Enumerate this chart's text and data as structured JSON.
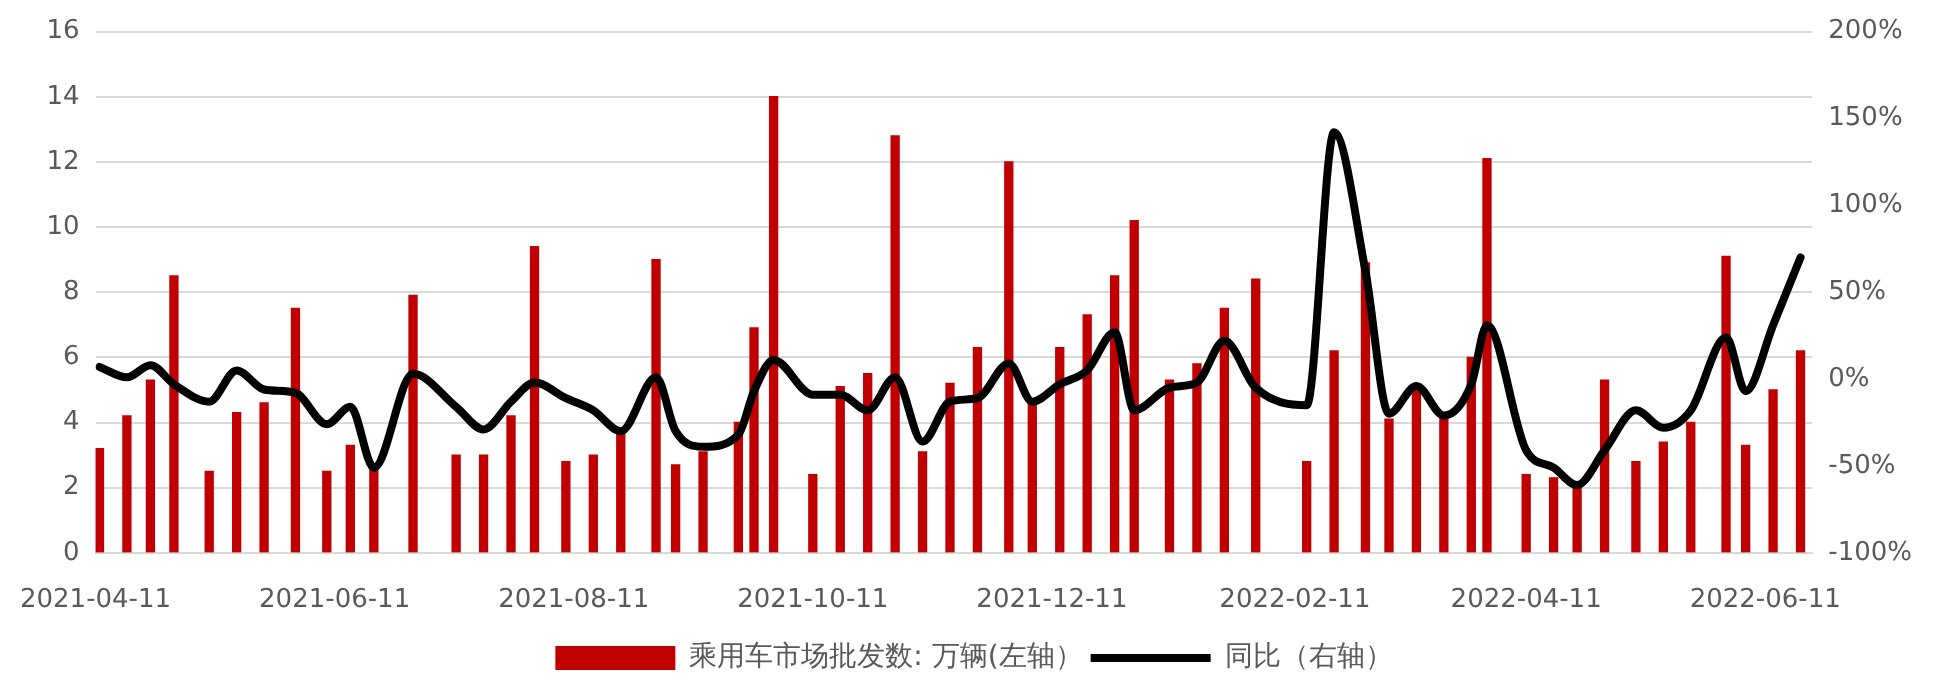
{
  "chart_data": {
    "type": "bar",
    "x": [
      "2021-04-12",
      "2021-04-19",
      "2021-04-25",
      "2021-05-01",
      "2021-05-10",
      "2021-05-17",
      "2021-05-24",
      "2021-06-01",
      "2021-06-09",
      "2021-06-15",
      "2021-06-21",
      "2021-07-01",
      "2021-07-12",
      "2021-07-19",
      "2021-07-26",
      "2021-08-01",
      "2021-08-09",
      "2021-08-16",
      "2021-08-23",
      "2021-09-01",
      "2021-09-06",
      "2021-09-13",
      "2021-09-22",
      "2021-09-26",
      "2021-10-01",
      "2021-10-11",
      "2021-10-18",
      "2021-10-25",
      "2021-11-01",
      "2021-11-08",
      "2021-11-15",
      "2021-11-22",
      "2021-11-30",
      "2021-12-06",
      "2021-12-13",
      "2021-12-20",
      "2021-12-27",
      "2022-01-01",
      "2022-01-10",
      "2022-01-17",
      "2022-01-24",
      "2022-02-01",
      "2022-02-14",
      "2022-02-21",
      "2022-03-01",
      "2022-03-07",
      "2022-03-14",
      "2022-03-21",
      "2022-03-28",
      "2022-04-01",
      "2022-04-11",
      "2022-04-18",
      "2022-04-24",
      "2022-05-01",
      "2022-05-09",
      "2022-05-16",
      "2022-05-23",
      "2022-06-01",
      "2022-06-06",
      "2022-06-13",
      "2022-06-20"
    ],
    "series": [
      {
        "name": "乘用车市场批发数: 万辆(左轴）",
        "color": "#c00000",
        "values": [
          3.2,
          4.2,
          5.3,
          8.5,
          2.5,
          4.3,
          4.6,
          7.5,
          2.5,
          3.3,
          2.6,
          7.9,
          3.0,
          3.0,
          4.2,
          9.4,
          2.8,
          3.0,
          3.7,
          9.0,
          2.7,
          3.1,
          4.0,
          6.9,
          14.0,
          2.4,
          5.1,
          5.5,
          12.8,
          3.1,
          5.2,
          6.3,
          12.0,
          4.7,
          6.3,
          7.3,
          8.5,
          10.2,
          5.3,
          5.8,
          7.5,
          8.4,
          2.8,
          6.2,
          8.9,
          4.1,
          5.0,
          4.2,
          6.0,
          12.1,
          2.4,
          2.3,
          2.0,
          5.3,
          2.8,
          3.4,
          4.0,
          9.1,
          3.3,
          5.0,
          6.2
        ]
      },
      {
        "name": "同比（右轴）",
        "type": "line",
        "axis": "y2",
        "color": "#000000",
        "values": [
          7,
          1,
          8,
          -3,
          -13,
          5,
          -6,
          -8,
          -26,
          -16,
          -51,
          3,
          -16,
          -29,
          -13,
          -2,
          -11,
          -18,
          -30,
          1,
          -30,
          -39,
          -32,
          -7,
          11,
          -9,
          -9,
          -18,
          1,
          -36,
          -13,
          -11,
          9,
          -13,
          -3,
          5,
          27,
          -18,
          -5,
          -2,
          22,
          -5,
          -15,
          142,
          62,
          -20,
          -4,
          -21,
          -3,
          31,
          -41,
          -51,
          -61,
          -41,
          -18,
          -28,
          -18,
          24,
          -7,
          31,
          70
        ]
      }
    ],
    "xlim": [
      "2021-04-11",
      "2022-06-23"
    ],
    "xticks": [
      "2021-04-11",
      "2021-06-11",
      "2021-08-11",
      "2021-10-11",
      "2021-12-11",
      "2022-02-11",
      "2022-04-11",
      "2022-06-11"
    ],
    "ylim": [
      0,
      16
    ],
    "yticks": [
      0,
      2,
      4,
      6,
      8,
      10,
      12,
      14,
      16
    ],
    "y2lim": [
      -100,
      200
    ],
    "y2ticks": [
      {
        "value": -100,
        "label": "-100%"
      },
      {
        "value": -50,
        "label": "-50%"
      },
      {
        "value": 0,
        "label": "0%"
      },
      {
        "value": 50,
        "label": "50%"
      },
      {
        "value": 100,
        "label": "100%"
      },
      {
        "value": 150,
        "label": "150%"
      },
      {
        "value": 200,
        "label": "200%"
      }
    ],
    "grid": "y",
    "legend": "bottom",
    "marker": "none",
    "line_style": "solid"
  }
}
